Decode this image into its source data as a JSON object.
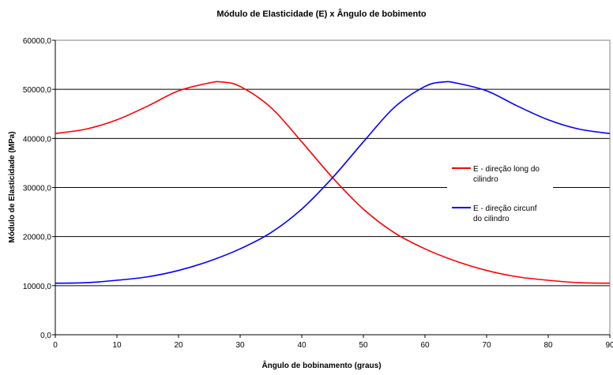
{
  "chart_data": {
    "type": "line",
    "title": "Módulo de Elasticidade (E) x Ângulo de bobimento",
    "xlabel": "Ângulo de bobinamento (graus)",
    "ylabel": "Módulo de Elasticidade (MPa)",
    "xlim": [
      0,
      90
    ],
    "ylim": [
      0,
      60000
    ],
    "x_ticks": [
      "0",
      "10",
      "20",
      "30",
      "40",
      "50",
      "60",
      "70",
      "80",
      "90"
    ],
    "y_ticks": [
      "0,0",
      "10000,0",
      "20000,0",
      "30000,0",
      "40000,0",
      "50000,0",
      "60000,0"
    ],
    "grid": "horizontal",
    "legend_position": "right",
    "series": [
      {
        "name": "E - direção long do cilindro",
        "legend_lines": [
          "E - direção long do",
          "cilindro"
        ],
        "color": "#ff0000",
        "x": [
          0,
          5,
          10,
          15,
          20,
          25,
          27,
          30,
          35,
          40,
          45,
          50,
          55,
          60,
          65,
          70,
          75,
          80,
          85,
          90
        ],
        "values": [
          41000,
          41900,
          43800,
          46600,
          49700,
          51300,
          51500,
          50600,
          46300,
          39300,
          32000,
          25600,
          20800,
          17500,
          15000,
          13100,
          11800,
          11100,
          10600,
          10500
        ]
      },
      {
        "name": "E - direção circunf do cilindro",
        "legend_lines": [
          "E - direção circunf",
          "do cilindro"
        ],
        "color": "#0000ff",
        "x": [
          0,
          5,
          10,
          15,
          20,
          25,
          30,
          35,
          40,
          45,
          50,
          55,
          60,
          63,
          65,
          70,
          75,
          80,
          85,
          90
        ],
        "values": [
          10500,
          10600,
          11100,
          11800,
          13100,
          15000,
          17500,
          20800,
          25600,
          32000,
          39300,
          46300,
          50600,
          51500,
          51300,
          49700,
          46600,
          43800,
          41900,
          41000
        ]
      }
    ]
  }
}
